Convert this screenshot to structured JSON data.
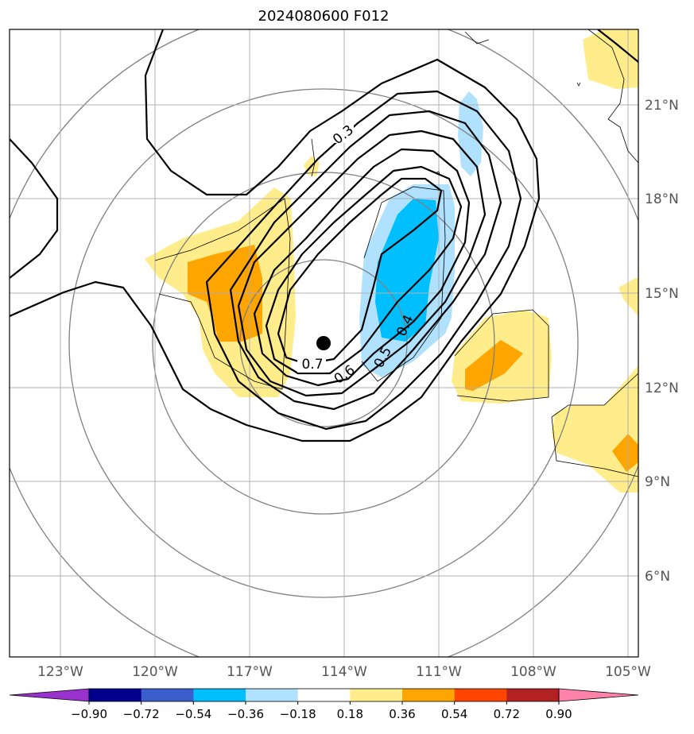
{
  "chart_data": {
    "type": "contour-map",
    "title": "2024080600 F012",
    "x_ticks": [
      "123°W",
      "120°W",
      "117°W",
      "114°W",
      "111°W",
      "108°W",
      "105°W"
    ],
    "y_ticks": [
      "21°N",
      "18°N",
      "15°N",
      "12°N",
      "9°N",
      "6°N"
    ],
    "xlim": [
      -124.6,
      -104.6
    ],
    "ylim": [
      3.5,
      23.5
    ],
    "grid": true,
    "colorbar": {
      "orientation": "horizontal",
      "position": "bottom",
      "extend": "both",
      "tick_labels": [
        "−0.90",
        "−0.72",
        "−0.54",
        "−0.36",
        "−0.18",
        "0.18",
        "0.36",
        "0.54",
        "0.72",
        "0.90"
      ],
      "colors": [
        "#9932CC",
        "#00008B",
        "#3A5FCD",
        "#00BFFF",
        "#B0E2FF",
        "#FFFFFF",
        "#FFEC8B",
        "#FFA500",
        "#FF4500",
        "#B22222",
        "#FF82AB"
      ]
    },
    "contour_labels": [
      "0.3",
      "0.4",
      "0.5",
      "0.6",
      "0.7"
    ],
    "center_marker": {
      "lon": -114.7,
      "lat": 13.4
    },
    "range_rings": "concentric circles around storm center"
  }
}
